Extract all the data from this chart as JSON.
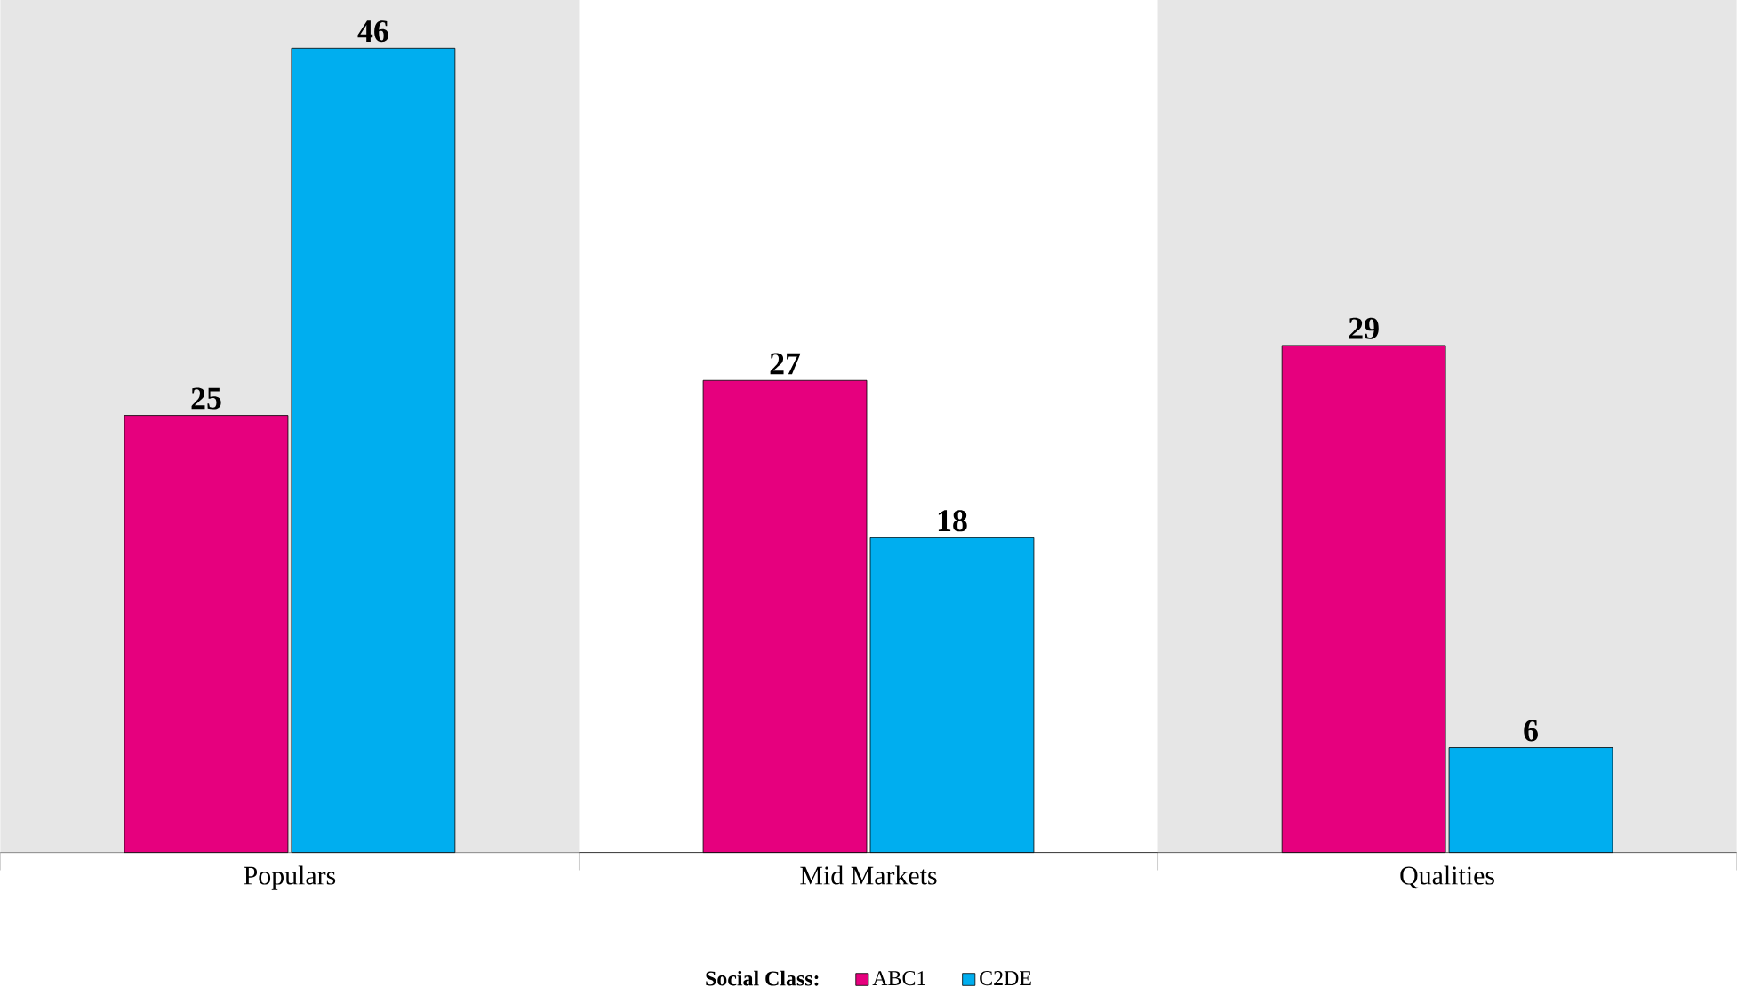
{
  "chart_data": {
    "type": "bar",
    "categories": [
      "Populars",
      "Mid Markets",
      "Qualities"
    ],
    "series": [
      {
        "name": "ABC1",
        "color": "#e6007e",
        "values": [
          25,
          27,
          29
        ]
      },
      {
        "name": "C2DE",
        "color": "#00aeef",
        "values": [
          46,
          18,
          6
        ]
      }
    ],
    "data_labels": true,
    "legend": "bottom",
    "legend_title": "Social Class:"
  }
}
